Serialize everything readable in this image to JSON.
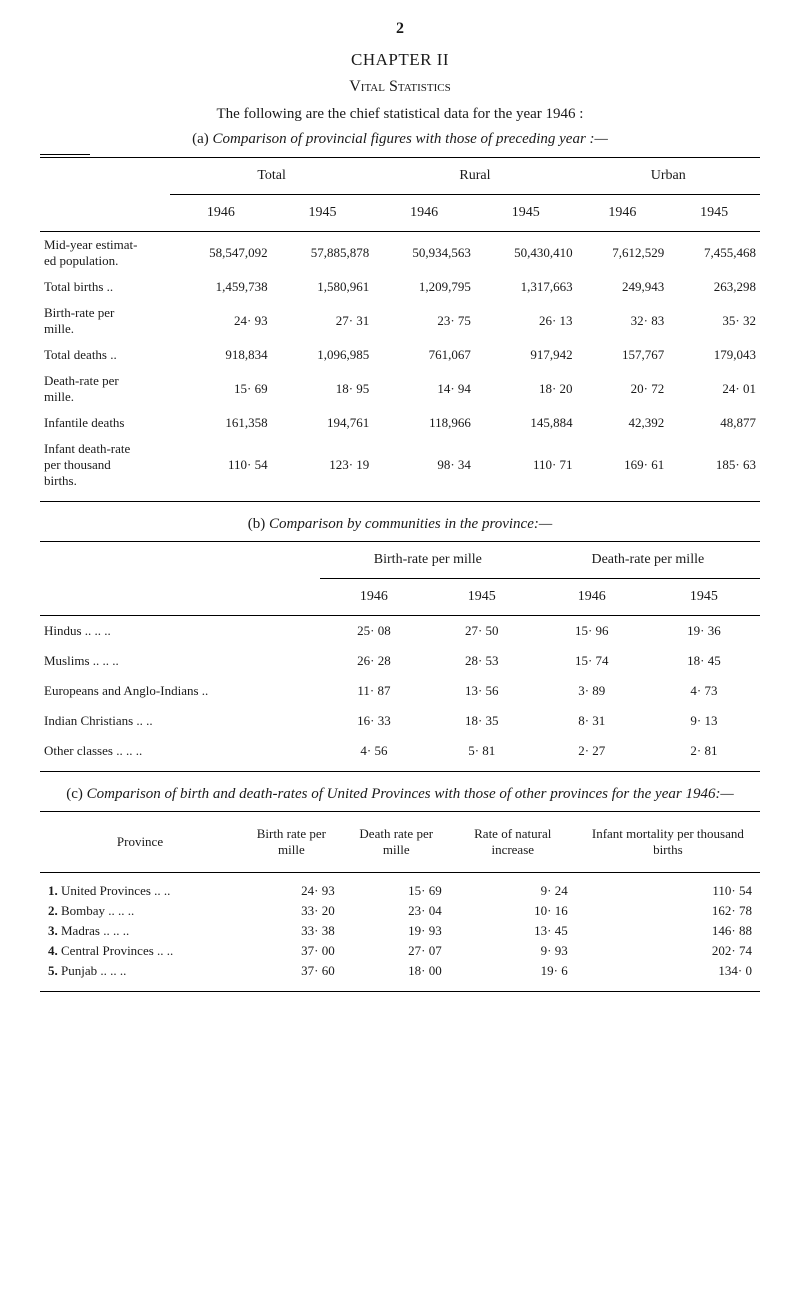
{
  "page_number": "2",
  "chapter_heading": "CHAPTER II",
  "section_heading": "Vital Statistics",
  "intro": "The following are the chief statistical data for the year 1946 :",
  "subsection_a": {
    "letter": "(a)",
    "title": "Comparison of provincial figures with those of preceding year :—"
  },
  "subsection_b": {
    "letter": "(b)",
    "title": "Comparison by communities in the province:—"
  },
  "subsection_c": {
    "letter": "(c)",
    "title": "Comparison of birth and death-rates of United Provinces with those of other provinces for the year 1946:—"
  },
  "table_a": {
    "type": "table",
    "top_headers": [
      "",
      "Total",
      "Rural",
      "Urban"
    ],
    "year_headers": [
      "",
      "1946",
      "1945",
      "1946",
      "1945",
      "1946",
      "1945"
    ],
    "rows": [
      [
        "Mid-year estimat-<br>ed population.",
        "58,547,092",
        "57,885,878",
        "50,934,563",
        "50,430,410",
        "7,612,529",
        "7,455,468"
      ],
      [
        "Total births   ..",
        "1,459,738",
        "1,580,961",
        "1,209,795",
        "1,317,663",
        "249,943",
        "263,298"
      ],
      [
        "Birth-rate per<br>mille.",
        "24· 93",
        "27· 31",
        "23· 75",
        "26· 13",
        "32· 83",
        "35· 32"
      ],
      [
        "Total deaths  ..",
        "918,834",
        "1,096,985",
        "761,067",
        "917,942",
        "157,767",
        "179,043"
      ],
      [
        "Death-rate per<br>mille.",
        "15· 69",
        "18· 95",
        "14· 94",
        "18· 20",
        "20· 72",
        "24· 01"
      ],
      [
        "Infantile deaths",
        "161,358",
        "194,761",
        "118,966",
        "145,884",
        "42,392",
        "48,877"
      ],
      [
        "Infant death-rate<br>per thousand<br>births.",
        "110· 54",
        "123· 19",
        "98· 34",
        "110· 71",
        "169· 61",
        "185· 63"
      ]
    ]
  },
  "table_b": {
    "type": "table",
    "top_headers": [
      "",
      "Birth-rate per mille",
      "Death-rate per mille"
    ],
    "year_headers": [
      "",
      "1946",
      "1945",
      "1946",
      "1945"
    ],
    "rows": [
      [
        "Hindus    ..       ..       ..",
        "25· 08",
        "27· 50",
        "15· 96",
        "19· 36"
      ],
      [
        "Muslims    ..       ..       ..",
        "26· 28",
        "28· 53",
        "15· 74",
        "18· 45"
      ],
      [
        "Europeans and Anglo-Indians       ..",
        "11· 87",
        "13· 56",
        "3· 89",
        "4· 73"
      ],
      [
        "Indian Christians    ..       ..",
        "16· 33",
        "18· 35",
        "8· 31",
        "9· 13"
      ],
      [
        "Other classes ..    ..       ..",
        "4· 56",
        "5· 81",
        "2· 27",
        "2· 81"
      ]
    ]
  },
  "table_c": {
    "type": "table",
    "headers": [
      "Province",
      "Birth rate per mille",
      "Death rate per mille",
      "Rate of natural increase",
      "Infant mortality per thousand births"
    ],
    "rows": [
      [
        "<b>1.</b> United Provinces   ..     ..",
        "24· 93",
        "15· 69",
        "9· 24",
        "110· 54"
      ],
      [
        "<b>2.</b> Bombay   ..       ..     ..",
        "33· 20",
        "23· 04",
        "10· 16",
        "162· 78"
      ],
      [
        "<b>3.</b> Madras   ..       ..     ..",
        "33· 38",
        "19· 93",
        "13· 45",
        "146· 88"
      ],
      [
        "<b>4.</b> Central Provinces   ..     ..",
        "37· 00",
        "27· 07",
        "9· 93",
        "202· 74"
      ],
      [
        "<b>5.</b> Punjab   ..       ..     ..",
        "37· 60",
        "18· 00",
        "19· 6",
        "134· 0"
      ]
    ]
  }
}
